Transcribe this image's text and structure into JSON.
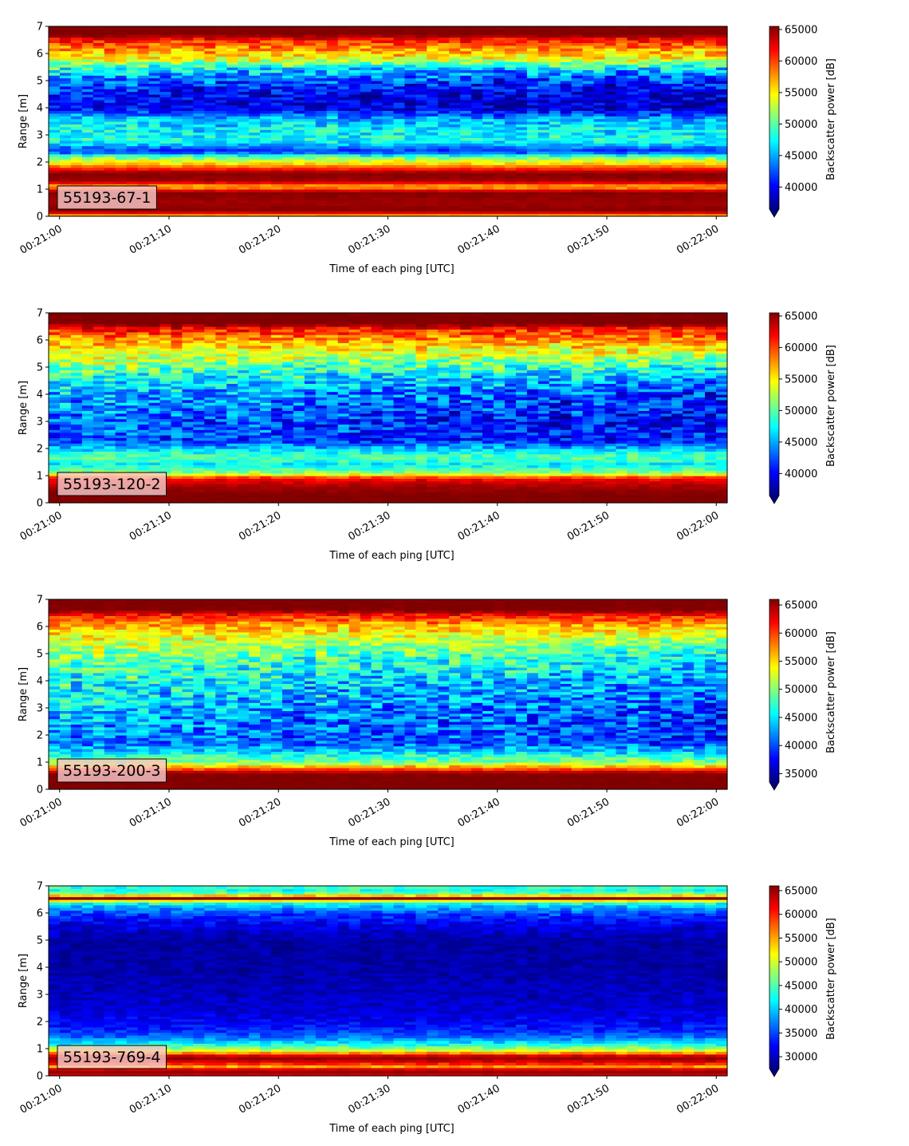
{
  "chart_data": [
    {
      "type": "heatmap",
      "label": "55193-67-1",
      "xlabel": "Time of each ping [UTC]",
      "ylabel": "Range [m]",
      "x_ticks": [
        "00:21:00",
        "00:21:10",
        "00:21:20",
        "00:21:30",
        "00:21:40",
        "00:21:50",
        "00:22:00"
      ],
      "y_ticks": [
        "0",
        "1",
        "2",
        "3",
        "4",
        "5",
        "6",
        "7"
      ],
      "ylim": [
        0,
        7
      ],
      "colorbar": {
        "label": "Backscatter power [dB]",
        "vmin": 36500,
        "vmax": 65500,
        "ticks": [
          "40000",
          "45000",
          "50000",
          "55000",
          "60000",
          "65000"
        ],
        "extend": "min",
        "colormap": "jet"
      },
      "profile": {
        "range_m": [
          0.0,
          0.2,
          0.5,
          0.9,
          1.1,
          1.3,
          1.6,
          1.9,
          2.2,
          2.4,
          2.8,
          3.2,
          3.6,
          4.0,
          4.5,
          5.0,
          5.4,
          5.8,
          6.2,
          6.5,
          6.7,
          7.0
        ],
        "power": [
          55000,
          65500,
          64500,
          65500,
          56000,
          64500,
          65500,
          57000,
          50000,
          41000,
          48000,
          47500,
          46000,
          40000,
          40500,
          43000,
          47000,
          54000,
          58000,
          61000,
          65500,
          65500
        ],
        "noise": [
          400,
          300,
          300,
          500,
          1500,
          500,
          300,
          1200,
          2500,
          1500,
          2500,
          3000,
          3000,
          2500,
          3000,
          3500,
          4000,
          3000,
          3000,
          2500,
          300,
          300
        ],
        "drift": [
          0,
          0,
          0,
          0,
          0,
          0,
          0,
          0,
          0,
          0,
          0,
          -800,
          -1500,
          -2000,
          -1500,
          -2000,
          -2500,
          0,
          0,
          0,
          0,
          0
        ]
      }
    },
    {
      "type": "heatmap",
      "label": "55193-120-2",
      "xlabel": "Time of each ping [UTC]",
      "ylabel": "Range [m]",
      "x_ticks": [
        "00:21:00",
        "00:21:10",
        "00:21:20",
        "00:21:30",
        "00:21:40",
        "00:21:50",
        "00:22:00"
      ],
      "y_ticks": [
        "0",
        "1",
        "2",
        "3",
        "4",
        "5",
        "6",
        "7"
      ],
      "ylim": [
        0,
        7
      ],
      "colorbar": {
        "label": "Backscatter power [dB]",
        "vmin": 36500,
        "vmax": 65500,
        "ticks": [
          "40000",
          "45000",
          "50000",
          "55000",
          "60000",
          "65000"
        ],
        "extend": "min",
        "colormap": "jet"
      },
      "profile": {
        "range_m": [
          0.0,
          0.3,
          0.6,
          0.9,
          1.1,
          1.4,
          1.7,
          2.0,
          2.3,
          2.7,
          3.0,
          3.5,
          4.0,
          4.5,
          5.0,
          5.5,
          6.0,
          6.4,
          6.6,
          7.0
        ],
        "power": [
          65500,
          65500,
          64500,
          62000,
          52000,
          47000,
          50000,
          46000,
          42000,
          43500,
          43000,
          44500,
          45500,
          47500,
          50500,
          54000,
          57500,
          61000,
          65500,
          65500
        ],
        "noise": [
          300,
          300,
          500,
          1500,
          2000,
          2000,
          2000,
          2500,
          3000,
          3500,
          3500,
          4000,
          4000,
          4000,
          4000,
          3500,
          3000,
          3000,
          500,
          300
        ],
        "drift": [
          0,
          0,
          0,
          0,
          0,
          0,
          0,
          0,
          -1500,
          -3000,
          -3500,
          -4000,
          -4500,
          -3500,
          -2500,
          -1000,
          0,
          0,
          0,
          0
        ]
      }
    },
    {
      "type": "heatmap",
      "label": "55193-200-3",
      "xlabel": "Time of each ping [UTC]",
      "ylabel": "Range [m]",
      "x_ticks": [
        "00:21:00",
        "00:21:10",
        "00:21:20",
        "00:21:30",
        "00:21:40",
        "00:21:50",
        "00:22:00"
      ],
      "y_ticks": [
        "0",
        "1",
        "2",
        "3",
        "4",
        "5",
        "6",
        "7"
      ],
      "ylim": [
        0,
        7
      ],
      "colorbar": {
        "label": "Backscatter power [dB]",
        "vmin": 33500,
        "vmax": 66000,
        "ticks": [
          "35000",
          "40000",
          "45000",
          "50000",
          "55000",
          "60000",
          "65000"
        ],
        "extend": "min",
        "colormap": "jet"
      },
      "profile": {
        "range_m": [
          0.0,
          0.3,
          0.6,
          0.8,
          1.0,
          1.3,
          1.7,
          2.0,
          2.5,
          3.0,
          3.5,
          4.0,
          4.5,
          5.0,
          5.5,
          6.0,
          6.4,
          6.6,
          7.0
        ],
        "power": [
          66000,
          66000,
          66000,
          58000,
          50000,
          46000,
          41000,
          42000,
          43000,
          44000,
          45500,
          46500,
          48000,
          50000,
          53000,
          56500,
          60500,
          66000,
          66000
        ],
        "noise": [
          300,
          300,
          500,
          2000,
          2500,
          3000,
          3500,
          4000,
          4500,
          4500,
          4500,
          4500,
          4500,
          4000,
          3500,
          3000,
          3000,
          500,
          300
        ],
        "drift": [
          0,
          0,
          0,
          0,
          0,
          0,
          -1500,
          -3000,
          -4000,
          -4500,
          -4500,
          -4500,
          -4000,
          -3500,
          -2500,
          -1000,
          0,
          0,
          0
        ]
      }
    },
    {
      "type": "heatmap",
      "label": "55193-769-4",
      "xlabel": "Time of each ping [UTC]",
      "ylabel": "Range [m]",
      "x_ticks": [
        "00:21:00",
        "00:21:10",
        "00:21:20",
        "00:21:30",
        "00:21:40",
        "00:21:50",
        "00:22:00"
      ],
      "y_ticks": [
        "0",
        "1",
        "2",
        "3",
        "4",
        "5",
        "6",
        "7"
      ],
      "ylim": [
        0,
        7
      ],
      "colorbar": {
        "label": "Backscatter power [dB]",
        "vmin": 27500,
        "vmax": 66000,
        "ticks": [
          "30000",
          "35000",
          "40000",
          "45000",
          "50000",
          "55000",
          "60000",
          "65000"
        ],
        "extend": "min",
        "colormap": "jet"
      },
      "profile": {
        "range_m": [
          0.0,
          0.2,
          0.35,
          0.5,
          0.7,
          0.9,
          1.1,
          1.4,
          1.7,
          2.0,
          2.5,
          3.0,
          4.0,
          5.0,
          5.6,
          5.9,
          6.2,
          6.4,
          6.55,
          6.7,
          6.85,
          7.0
        ],
        "power": [
          62000,
          66000,
          55000,
          62000,
          66000,
          52000,
          44000,
          37000,
          33500,
          32000,
          30500,
          30000,
          29000,
          29000,
          31500,
          34000,
          38000,
          44000,
          66000,
          47000,
          43000,
          44000
        ],
        "noise": [
          500,
          300,
          2000,
          1500,
          500,
          2500,
          2500,
          2000,
          2000,
          1800,
          1500,
          1500,
          1200,
          1200,
          2000,
          2500,
          2500,
          2500,
          500,
          2500,
          2500,
          2500
        ],
        "drift": [
          0,
          0,
          0,
          0,
          0,
          0,
          0,
          0,
          0,
          0,
          0,
          0,
          0,
          0,
          0,
          0,
          0,
          0,
          0,
          0,
          0,
          0
        ]
      }
    }
  ]
}
